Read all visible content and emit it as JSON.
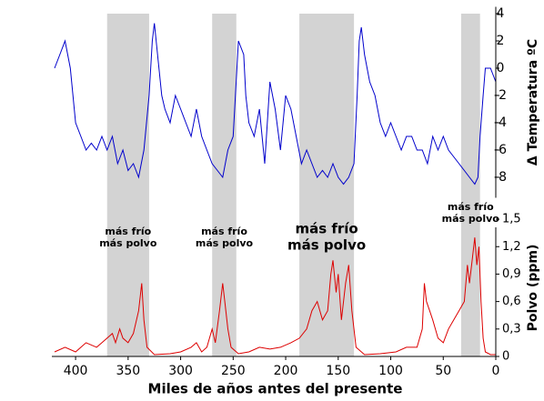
{
  "chart_data": [
    {
      "type": "line",
      "ylabel": "Δ Temperatura ºC",
      "color": "#0000cc",
      "xlim": [
        420,
        0
      ],
      "ylim": [
        -9.5,
        4.5
      ],
      "yticks": [
        4,
        2,
        0,
        -2,
        -4,
        -6,
        -8
      ],
      "x": [
        420,
        415,
        410,
        405,
        400,
        395,
        390,
        385,
        380,
        375,
        370,
        365,
        360,
        355,
        350,
        345,
        340,
        335,
        330,
        327,
        325,
        322,
        318,
        315,
        310,
        305,
        300,
        295,
        290,
        285,
        280,
        275,
        270,
        265,
        260,
        255,
        250,
        245,
        240,
        238,
        235,
        230,
        225,
        220,
        215,
        210,
        205,
        200,
        195,
        190,
        185,
        180,
        175,
        170,
        165,
        160,
        155,
        150,
        145,
        140,
        135,
        132,
        130,
        128,
        125,
        120,
        115,
        110,
        105,
        100,
        95,
        90,
        85,
        80,
        75,
        70,
        65,
        60,
        55,
        50,
        45,
        40,
        35,
        30,
        25,
        20,
        17,
        15,
        12,
        10,
        5,
        0
      ],
      "values": [
        0,
        1,
        2,
        0,
        -4,
        -5,
        -6,
        -5.5,
        -6,
        -5,
        -6,
        -5,
        -7,
        -6,
        -7.5,
        -7,
        -8,
        -6,
        -2,
        2,
        3.3,
        1,
        -2,
        -3,
        -4,
        -2,
        -3,
        -4,
        -5,
        -3,
        -5,
        -6,
        -7,
        -7.5,
        -8,
        -6,
        -5,
        2,
        1,
        -2,
        -4,
        -5,
        -3,
        -7,
        -1,
        -3,
        -6,
        -2,
        -3,
        -5,
        -7,
        -6,
        -7,
        -8,
        -7.5,
        -8,
        -7,
        -8,
        -8.5,
        -8,
        -7,
        -2,
        2,
        3,
        1,
        -1,
        -2,
        -4,
        -5,
        -4,
        -5,
        -6,
        -5,
        -5,
        -6,
        -6,
        -7,
        -5,
        -6,
        -5,
        -6,
        -6.5,
        -7,
        -7.5,
        -8,
        -8.5,
        -8,
        -5,
        -2,
        0,
        0,
        -1
      ],
      "shaded_regions": [
        {
          "xlim": [
            370,
            330
          ],
          "label": [
            "más frío",
            "más polvo"
          ]
        },
        {
          "xlim": [
            270,
            247
          ],
          "label": [
            "más frío",
            "más polvo"
          ]
        },
        {
          "xlim": [
            187,
            135
          ],
          "label": [
            "más frío",
            "más polvo"
          ]
        },
        {
          "xlim": [
            33,
            15
          ],
          "label": [
            "más frío",
            "más polvo"
          ]
        }
      ]
    },
    {
      "type": "line",
      "ylabel": "Polvo  (ppm)",
      "xlabel": "Miles de años antes del presente",
      "color": "#dd0000",
      "xlim": [
        420,
        0
      ],
      "ylim": [
        0,
        1.6
      ],
      "yticks": [
        0,
        {
          "value": 0.3,
          "label": "0,3"
        },
        {
          "value": 0.6,
          "label": "0,6"
        },
        {
          "value": 0.9,
          "label": "0,9"
        },
        {
          "value": 1.2,
          "label": "1,2"
        },
        {
          "value": 1.5,
          "label": "1,5"
        }
      ],
      "xticks": [
        400,
        350,
        300,
        250,
        200,
        150,
        100,
        50,
        0
      ],
      "x": [
        420,
        410,
        400,
        390,
        380,
        375,
        370,
        365,
        362,
        358,
        355,
        350,
        345,
        340,
        337,
        335,
        332,
        325,
        310,
        300,
        290,
        285,
        280,
        275,
        270,
        267,
        263,
        260,
        258,
        255,
        252,
        245,
        235,
        225,
        215,
        205,
        195,
        187,
        180,
        175,
        170,
        165,
        160,
        157,
        155,
        152,
        150,
        147,
        143,
        140,
        137,
        133,
        125,
        110,
        95,
        85,
        75,
        70,
        68,
        66,
        63,
        60,
        55,
        50,
        45,
        40,
        35,
        30,
        27,
        25,
        22,
        20,
        18,
        16,
        14,
        12,
        10,
        5,
        0
      ],
      "values": [
        0.05,
        0.1,
        0.05,
        0.15,
        0.1,
        0.15,
        0.2,
        0.25,
        0.15,
        0.3,
        0.2,
        0.15,
        0.25,
        0.5,
        0.8,
        0.4,
        0.1,
        0.02,
        0.03,
        0.05,
        0.1,
        0.15,
        0.05,
        0.1,
        0.3,
        0.15,
        0.5,
        0.8,
        0.6,
        0.3,
        0.1,
        0.03,
        0.05,
        0.1,
        0.08,
        0.1,
        0.15,
        0.2,
        0.3,
        0.5,
        0.6,
        0.4,
        0.5,
        0.9,
        1.05,
        0.7,
        0.9,
        0.4,
        0.8,
        1.0,
        0.5,
        0.1,
        0.02,
        0.03,
        0.05,
        0.1,
        0.1,
        0.3,
        0.8,
        0.6,
        0.5,
        0.4,
        0.2,
        0.15,
        0.3,
        0.4,
        0.5,
        0.6,
        1.0,
        0.8,
        1.1,
        1.3,
        1.0,
        1.2,
        0.6,
        0.2,
        0.05,
        0.02,
        0.02
      ]
    }
  ]
}
